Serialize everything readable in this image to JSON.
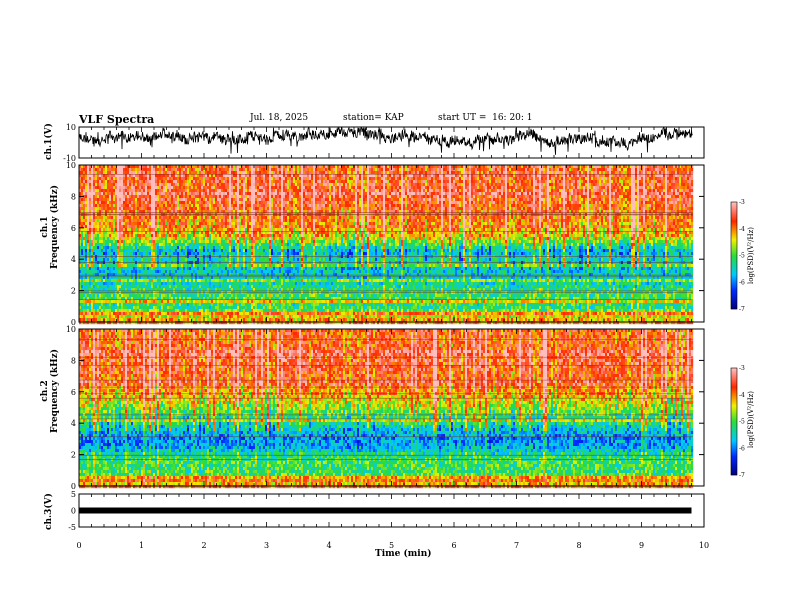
{
  "header": {
    "title": "VLF Spectra",
    "date": "Jul. 18, 2025",
    "station": "station= KAP",
    "start": "start UT =  16: 20: 1"
  },
  "colorbar": {
    "label": "log(PSD)(V²/Hz)",
    "ticks": [
      "-3",
      "-4",
      "-5",
      "-6",
      "-7"
    ]
  },
  "chart_data": [
    {
      "type": "line",
      "name": "ch.1 waveform",
      "ylabel": "ch.1(V)",
      "ylim": [
        -10,
        10
      ],
      "yticks": [
        "10",
        "-10"
      ],
      "xlim": [
        0,
        10
      ],
      "note": "noisy waveform roughly between -10 and 8 V"
    },
    {
      "type": "heatmap",
      "name": "ch.1 spectrogram",
      "ylabel": "ch.1\nFrequency (kHz)",
      "ylim": [
        0,
        10
      ],
      "yticks": [
        "10",
        "8",
        "6",
        "4",
        "2",
        "0"
      ],
      "xlim": [
        0,
        10
      ],
      "zlim": [
        -7,
        -3
      ],
      "profile_freq_khz": [
        0,
        0.5,
        1,
        1.5,
        2,
        2.5,
        3,
        3.5,
        4,
        4.5,
        5,
        5.5,
        6,
        6.5,
        7,
        7.5,
        8,
        8.5,
        9,
        9.5,
        10
      ],
      "profile_log_psd": [
        -4.0,
        -4.6,
        -5.2,
        -5.0,
        -5.1,
        -5.4,
        -5.5,
        -5.6,
        -5.3,
        -5.6,
        -4.8,
        -4.2,
        -4.0,
        -3.8,
        -3.7,
        -3.6,
        -3.5,
        -3.5,
        -3.6,
        -3.6,
        -3.6
      ]
    },
    {
      "type": "heatmap",
      "name": "ch.2 spectrogram",
      "ylabel": "ch.2\nFrequency (kHz)",
      "ylim": [
        0,
        10
      ],
      "yticks": [
        "10",
        "8",
        "6",
        "4",
        "2",
        "0"
      ],
      "xlim": [
        0,
        10
      ],
      "zlim": [
        -7,
        -3
      ],
      "profile_freq_khz": [
        0,
        0.5,
        1,
        1.5,
        2,
        2.5,
        3,
        3.5,
        4,
        4.5,
        5,
        5.5,
        6,
        6.5,
        7,
        7.5,
        8,
        8.5,
        9,
        9.5,
        10
      ],
      "profile_log_psd": [
        -3.9,
        -4.8,
        -5.1,
        -5.0,
        -5.2,
        -5.8,
        -5.9,
        -5.6,
        -5.2,
        -5.0,
        -4.6,
        -4.3,
        -4.0,
        -3.8,
        -3.7,
        -3.6,
        -3.5,
        -3.6,
        -3.7,
        -3.7,
        -3.7
      ]
    },
    {
      "type": "line",
      "name": "ch.3 waveform",
      "ylabel": "ch.3(V)",
      "ylim": [
        -5,
        5
      ],
      "yticks": [
        "5",
        "0",
        "-5"
      ],
      "xlim": [
        0,
        10
      ],
      "x": [
        0,
        9.8
      ],
      "y": [
        0,
        0
      ],
      "note": "thick flat line near 0 V"
    }
  ],
  "xaxis": {
    "label": "Time (min)",
    "ticks": [
      "0",
      "1",
      "2",
      "3",
      "4",
      "5",
      "6",
      "7",
      "8",
      "9",
      "10"
    ]
  }
}
